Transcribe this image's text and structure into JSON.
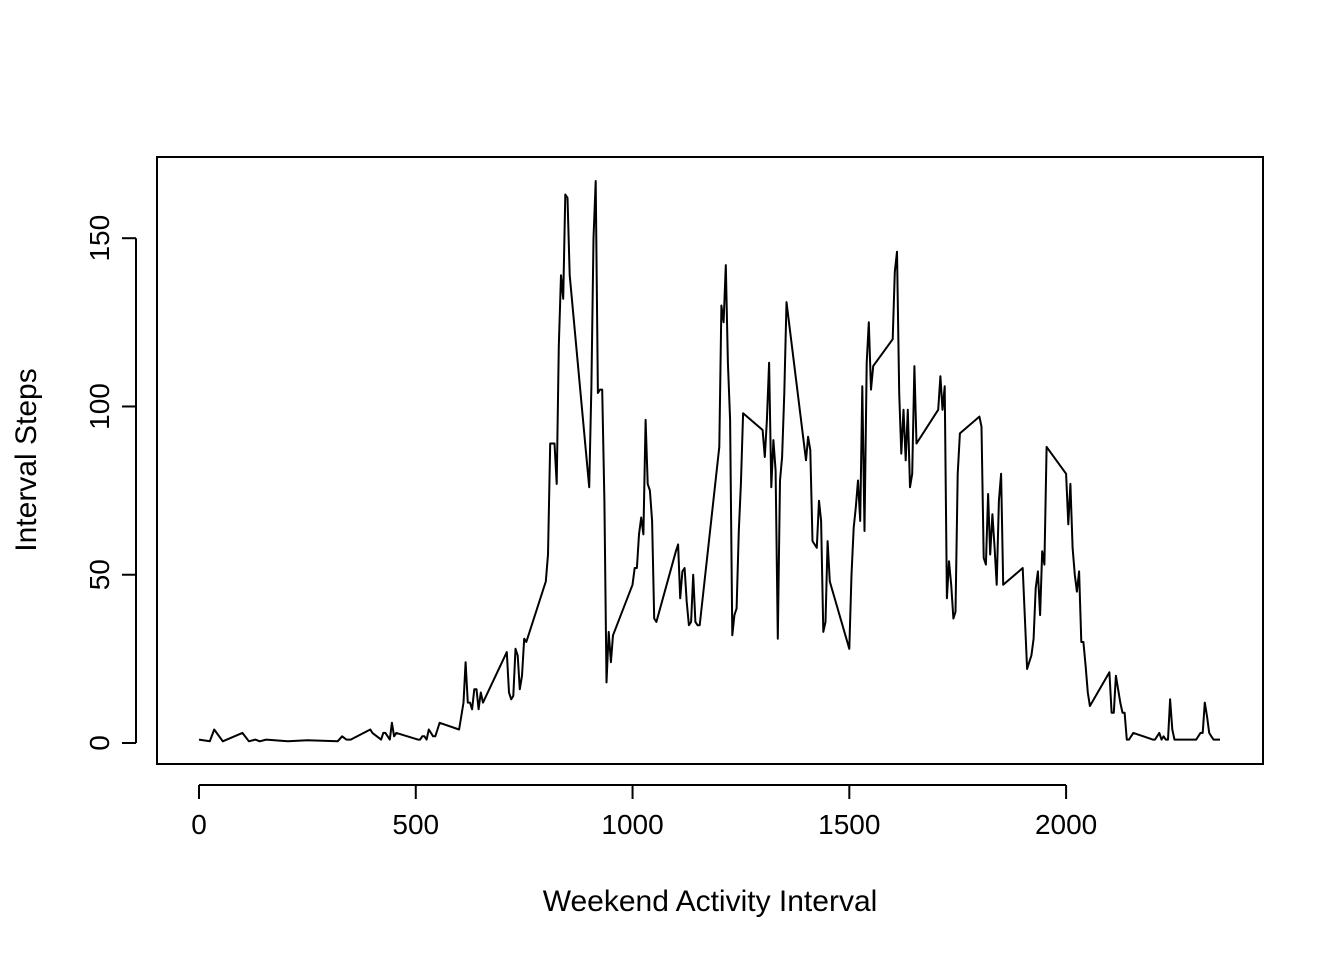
{
  "chart_data": {
    "type": "line",
    "title": "",
    "xlabel": "Weekend Activity Interval",
    "ylabel": "Interval Steps",
    "xlim": [
      0,
      2355
    ],
    "ylim": [
      0,
      167
    ],
    "xticks": [
      0,
      500,
      1000,
      1500,
      2000
    ],
    "yticks": [
      0,
      50,
      100,
      150
    ],
    "grid": false,
    "legend": "none",
    "line_color": "#000000",
    "series": [
      {
        "x": [
          0,
          25,
          35,
          55,
          100,
          115,
          130,
          140,
          155,
          205,
          250,
          320,
          330,
          340,
          350,
          395,
          400,
          410,
          420,
          425,
          430,
          440,
          445,
          450,
          455,
          505,
          510,
          515,
          520,
          525,
          530,
          540,
          545,
          550,
          555,
          600,
          605,
          610,
          615,
          620,
          625,
          630,
          635,
          640,
          645,
          650,
          655,
          710,
          715,
          720,
          725,
          730,
          735,
          740,
          745,
          750,
          755,
          800,
          805,
          810,
          815,
          820,
          825,
          830,
          835,
          840,
          845,
          850,
          855,
          900,
          905,
          910,
          915,
          920,
          925,
          930,
          935,
          940,
          945,
          950,
          955,
          1000,
          1005,
          1010,
          1015,
          1020,
          1025,
          1030,
          1035,
          1040,
          1045,
          1050,
          1055,
          1100,
          1105,
          1110,
          1115,
          1120,
          1125,
          1130,
          1135,
          1140,
          1145,
          1150,
          1155,
          1200,
          1205,
          1210,
          1215,
          1220,
          1225,
          1230,
          1235,
          1240,
          1245,
          1250,
          1255,
          1300,
          1305,
          1310,
          1315,
          1320,
          1325,
          1330,
          1335,
          1340,
          1345,
          1350,
          1355,
          1400,
          1405,
          1410,
          1415,
          1420,
          1425,
          1430,
          1435,
          1440,
          1445,
          1450,
          1455,
          1500,
          1505,
          1510,
          1515,
          1520,
          1525,
          1530,
          1535,
          1540,
          1545,
          1550,
          1555,
          1600,
          1605,
          1610,
          1615,
          1620,
          1625,
          1630,
          1635,
          1640,
          1645,
          1650,
          1655,
          1700,
          1705,
          1710,
          1715,
          1720,
          1725,
          1730,
          1735,
          1740,
          1745,
          1750,
          1755,
          1800,
          1805,
          1810,
          1815,
          1820,
          1825,
          1830,
          1835,
          1840,
          1845,
          1850,
          1855,
          1900,
          1905,
          1910,
          1915,
          1920,
          1925,
          1930,
          1935,
          1940,
          1945,
          1950,
          1955,
          2000,
          2005,
          2010,
          2015,
          2020,
          2025,
          2030,
          2035,
          2040,
          2045,
          2050,
          2055,
          2100,
          2105,
          2110,
          2115,
          2120,
          2125,
          2130,
          2135,
          2140,
          2145,
          2150,
          2155,
          2200,
          2205,
          2210,
          2215,
          2220,
          2225,
          2230,
          2235,
          2240,
          2245,
          2250,
          2255,
          2300,
          2305,
          2310,
          2315,
          2320,
          2325,
          2330,
          2335,
          2340,
          2345,
          2350,
          2355
        ],
        "values": [
          1,
          0.5,
          4,
          0.5,
          3,
          0.5,
          1,
          0.5,
          1,
          0.5,
          0.8,
          0.5,
          2,
          1,
          1,
          4,
          3,
          2,
          1,
          3,
          3,
          1,
          6,
          2,
          3,
          1,
          1,
          2,
          2,
          1,
          4,
          2,
          2,
          4,
          6,
          4,
          8,
          12,
          24,
          12,
          12,
          10,
          16,
          16,
          10,
          15,
          12,
          27,
          15,
          13,
          14,
          28,
          26,
          16,
          20,
          31,
          30,
          48,
          56,
          89,
          89,
          89,
          77,
          118,
          139,
          132,
          163,
          162,
          139,
          76,
          106,
          150,
          167,
          104,
          105,
          105,
          72,
          18,
          33,
          24,
          32,
          47,
          52,
          52,
          62,
          67,
          62,
          96,
          77,
          75,
          66,
          37,
          36,
          57,
          59,
          43,
          51,
          52,
          42,
          35,
          36,
          50,
          36,
          35,
          35,
          88,
          130,
          125,
          142,
          113,
          96,
          32,
          38,
          40,
          63,
          77,
          98,
          93,
          85,
          96,
          113,
          76,
          90,
          81,
          31,
          78,
          85,
          104,
          131,
          84,
          91,
          87,
          60,
          59,
          58,
          72,
          66,
          33,
          36,
          60,
          48,
          28,
          50,
          64,
          70,
          78,
          66,
          106,
          63,
          113,
          125,
          105,
          112,
          120,
          140,
          146,
          104,
          86,
          99,
          84,
          99,
          76,
          80,
          112,
          89,
          98,
          99,
          109,
          99,
          106,
          43,
          54,
          47,
          37,
          39,
          80,
          92,
          97,
          94,
          55,
          53,
          74,
          56,
          68,
          58,
          47,
          72,
          80,
          47,
          52,
          37,
          22,
          24,
          26,
          31,
          46,
          51,
          38,
          57,
          53,
          88,
          80,
          65,
          77,
          58,
          50,
          45,
          51,
          30,
          30,
          23,
          15,
          11,
          21,
          9,
          9,
          20,
          16,
          12,
          9,
          9,
          1,
          1,
          2,
          3,
          1,
          1,
          2,
          3,
          1,
          2,
          1,
          1,
          13,
          4,
          1,
          1,
          1,
          2,
          3,
          3,
          12,
          8,
          3,
          2,
          1,
          1,
          1,
          1
        ]
      }
    ]
  }
}
